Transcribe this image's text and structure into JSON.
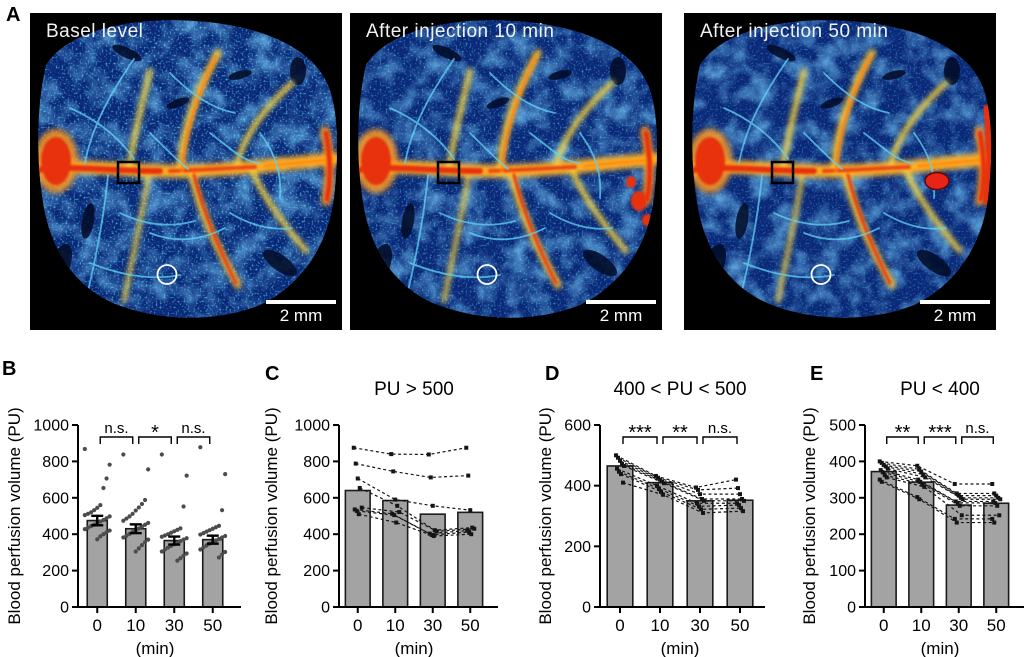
{
  "panel_a": {
    "label": "A",
    "images": [
      {
        "title": "Basel level",
        "scalebar_label": "2 mm",
        "has_occlusion_spot": false
      },
      {
        "title": "After injection 10 min",
        "scalebar_label": "2 mm",
        "has_occlusion_spot": false
      },
      {
        "title": "After injection 50 min",
        "scalebar_label": "2 mm",
        "has_occlusion_spot": true
      }
    ],
    "annotations": {
      "roi_square": "black-square",
      "roi_circle": "white-circle"
    }
  },
  "colors": {
    "bar_fill": "#a3a3a3",
    "bar_stroke": "#1b1b1b",
    "heat_low": "#0b2878",
    "heat_mid": "#62d4f5",
    "heat_high": "#ffd83a",
    "heat_max": "#e7330e"
  },
  "chart_data": [
    {
      "panel": "B",
      "type": "bar",
      "title": "",
      "ylabel": "Blood perfusion volume (PU)",
      "xlabel": "(min)",
      "categories": [
        "0",
        "10",
        "30",
        "50"
      ],
      "values": [
        475,
        430,
        365,
        370
      ],
      "errors": [
        26,
        24,
        22,
        22
      ],
      "ylim": [
        0,
        1000
      ],
      "yticks": [
        0,
        200,
        400,
        600,
        800,
        1000
      ],
      "significance": [
        {
          "from": 0,
          "to": 1,
          "label": "n.s."
        },
        {
          "from": 1,
          "to": 2,
          "label": "*"
        },
        {
          "from": 2,
          "to": 3,
          "label": "n.s."
        }
      ],
      "scatter": [
        [
          868,
          782,
          706,
          654,
          560,
          545,
          532,
          520,
          512,
          505,
          498,
          488,
          478,
          470,
          462,
          452,
          444,
          436,
          428,
          420,
          410,
          400,
          388,
          372
        ],
        [
          838,
          756,
          588,
          566,
          547,
          530,
          512,
          498,
          486,
          474,
          462,
          452,
          442,
          432,
          422,
          412,
          402,
          392,
          382,
          370,
          356,
          340,
          322,
          305
        ],
        [
          838,
          722,
          552,
          432,
          424,
          416,
          408,
          400,
          393,
          386,
          378,
          370,
          362,
          354,
          345,
          336,
          326,
          316,
          305,
          294,
          282,
          268,
          255
        ],
        [
          878,
          730,
          532,
          446,
          438,
          430,
          422,
          414,
          406,
          398,
          390,
          382,
          374,
          366,
          357,
          348,
          338,
          328,
          316,
          302,
          288,
          272
        ]
      ]
    },
    {
      "panel": "C",
      "type": "bar-paired",
      "title": "PU > 500",
      "ylabel": "Blood perfusion volume (PU)",
      "xlabel": "(min)",
      "categories": [
        "0",
        "10",
        "30",
        "50"
      ],
      "values": [
        640,
        585,
        510,
        520
      ],
      "ylim": [
        0,
        1000
      ],
      "yticks": [
        0,
        200,
        400,
        600,
        800,
        1000
      ],
      "series": [
        [
          875,
          840,
          838,
          875
        ],
        [
          788,
          745,
          712,
          722
        ],
        [
          706,
          590,
          556,
          532
        ],
        [
          654,
          556,
          422,
          436
        ],
        [
          546,
          522,
          416,
          430
        ],
        [
          536,
          512,
          403,
          420
        ],
        [
          528,
          505,
          396,
          412
        ],
        [
          510,
          464,
          390,
          400
        ]
      ]
    },
    {
      "panel": "D",
      "type": "bar-paired",
      "title": "400 < PU < 500",
      "ylabel": "Blood perfusion volume (PU)",
      "xlabel": "(min)",
      "categories": [
        "0",
        "10",
        "30",
        "50"
      ],
      "values": [
        465,
        410,
        350,
        352
      ],
      "ylim": [
        0,
        600
      ],
      "yticks": [
        0,
        200,
        400,
        600
      ],
      "significance": [
        {
          "from": 0,
          "to": 1,
          "label": "***"
        },
        {
          "from": 1,
          "to": 2,
          "label": "**"
        },
        {
          "from": 2,
          "to": 3,
          "label": "n.s."
        }
      ],
      "series": [
        [
          500,
          432,
          394,
          420
        ],
        [
          492,
          426,
          386,
          392
        ],
        [
          482,
          420,
          372,
          372
        ],
        [
          472,
          414,
          356,
          356
        ],
        [
          465,
          408,
          350,
          350
        ],
        [
          456,
          400,
          342,
          342
        ],
        [
          446,
          390,
          332,
          336
        ],
        [
          438,
          380,
          322,
          326
        ],
        [
          410,
          370,
          310,
          316
        ]
      ]
    },
    {
      "panel": "E",
      "type": "bar-paired",
      "title": "PU < 400",
      "ylabel": "Blood perfusion volume (PU)",
      "xlabel": "(min)",
      "categories": [
        "0",
        "10",
        "30",
        "50"
      ],
      "values": [
        372,
        343,
        280,
        285
      ],
      "ylim": [
        0,
        500
      ],
      "yticks": [
        0,
        100,
        200,
        300,
        400,
        500
      ],
      "significance": [
        {
          "from": 0,
          "to": 1,
          "label": "**"
        },
        {
          "from": 1,
          "to": 2,
          "label": "***"
        },
        {
          "from": 2,
          "to": 3,
          "label": "n.s."
        }
      ],
      "series": [
        [
          400,
          388,
          338,
          338
        ],
        [
          396,
          378,
          312,
          312
        ],
        [
          390,
          372,
          306,
          306
        ],
        [
          386,
          364,
          300,
          300
        ],
        [
          380,
          356,
          296,
          296
        ],
        [
          376,
          350,
          290,
          290
        ],
        [
          370,
          344,
          286,
          286
        ],
        [
          362,
          338,
          278,
          278
        ],
        [
          356,
          330,
          252,
          252
        ],
        [
          350,
          302,
          242,
          242
        ],
        [
          344,
          296,
          232,
          232
        ]
      ]
    }
  ]
}
